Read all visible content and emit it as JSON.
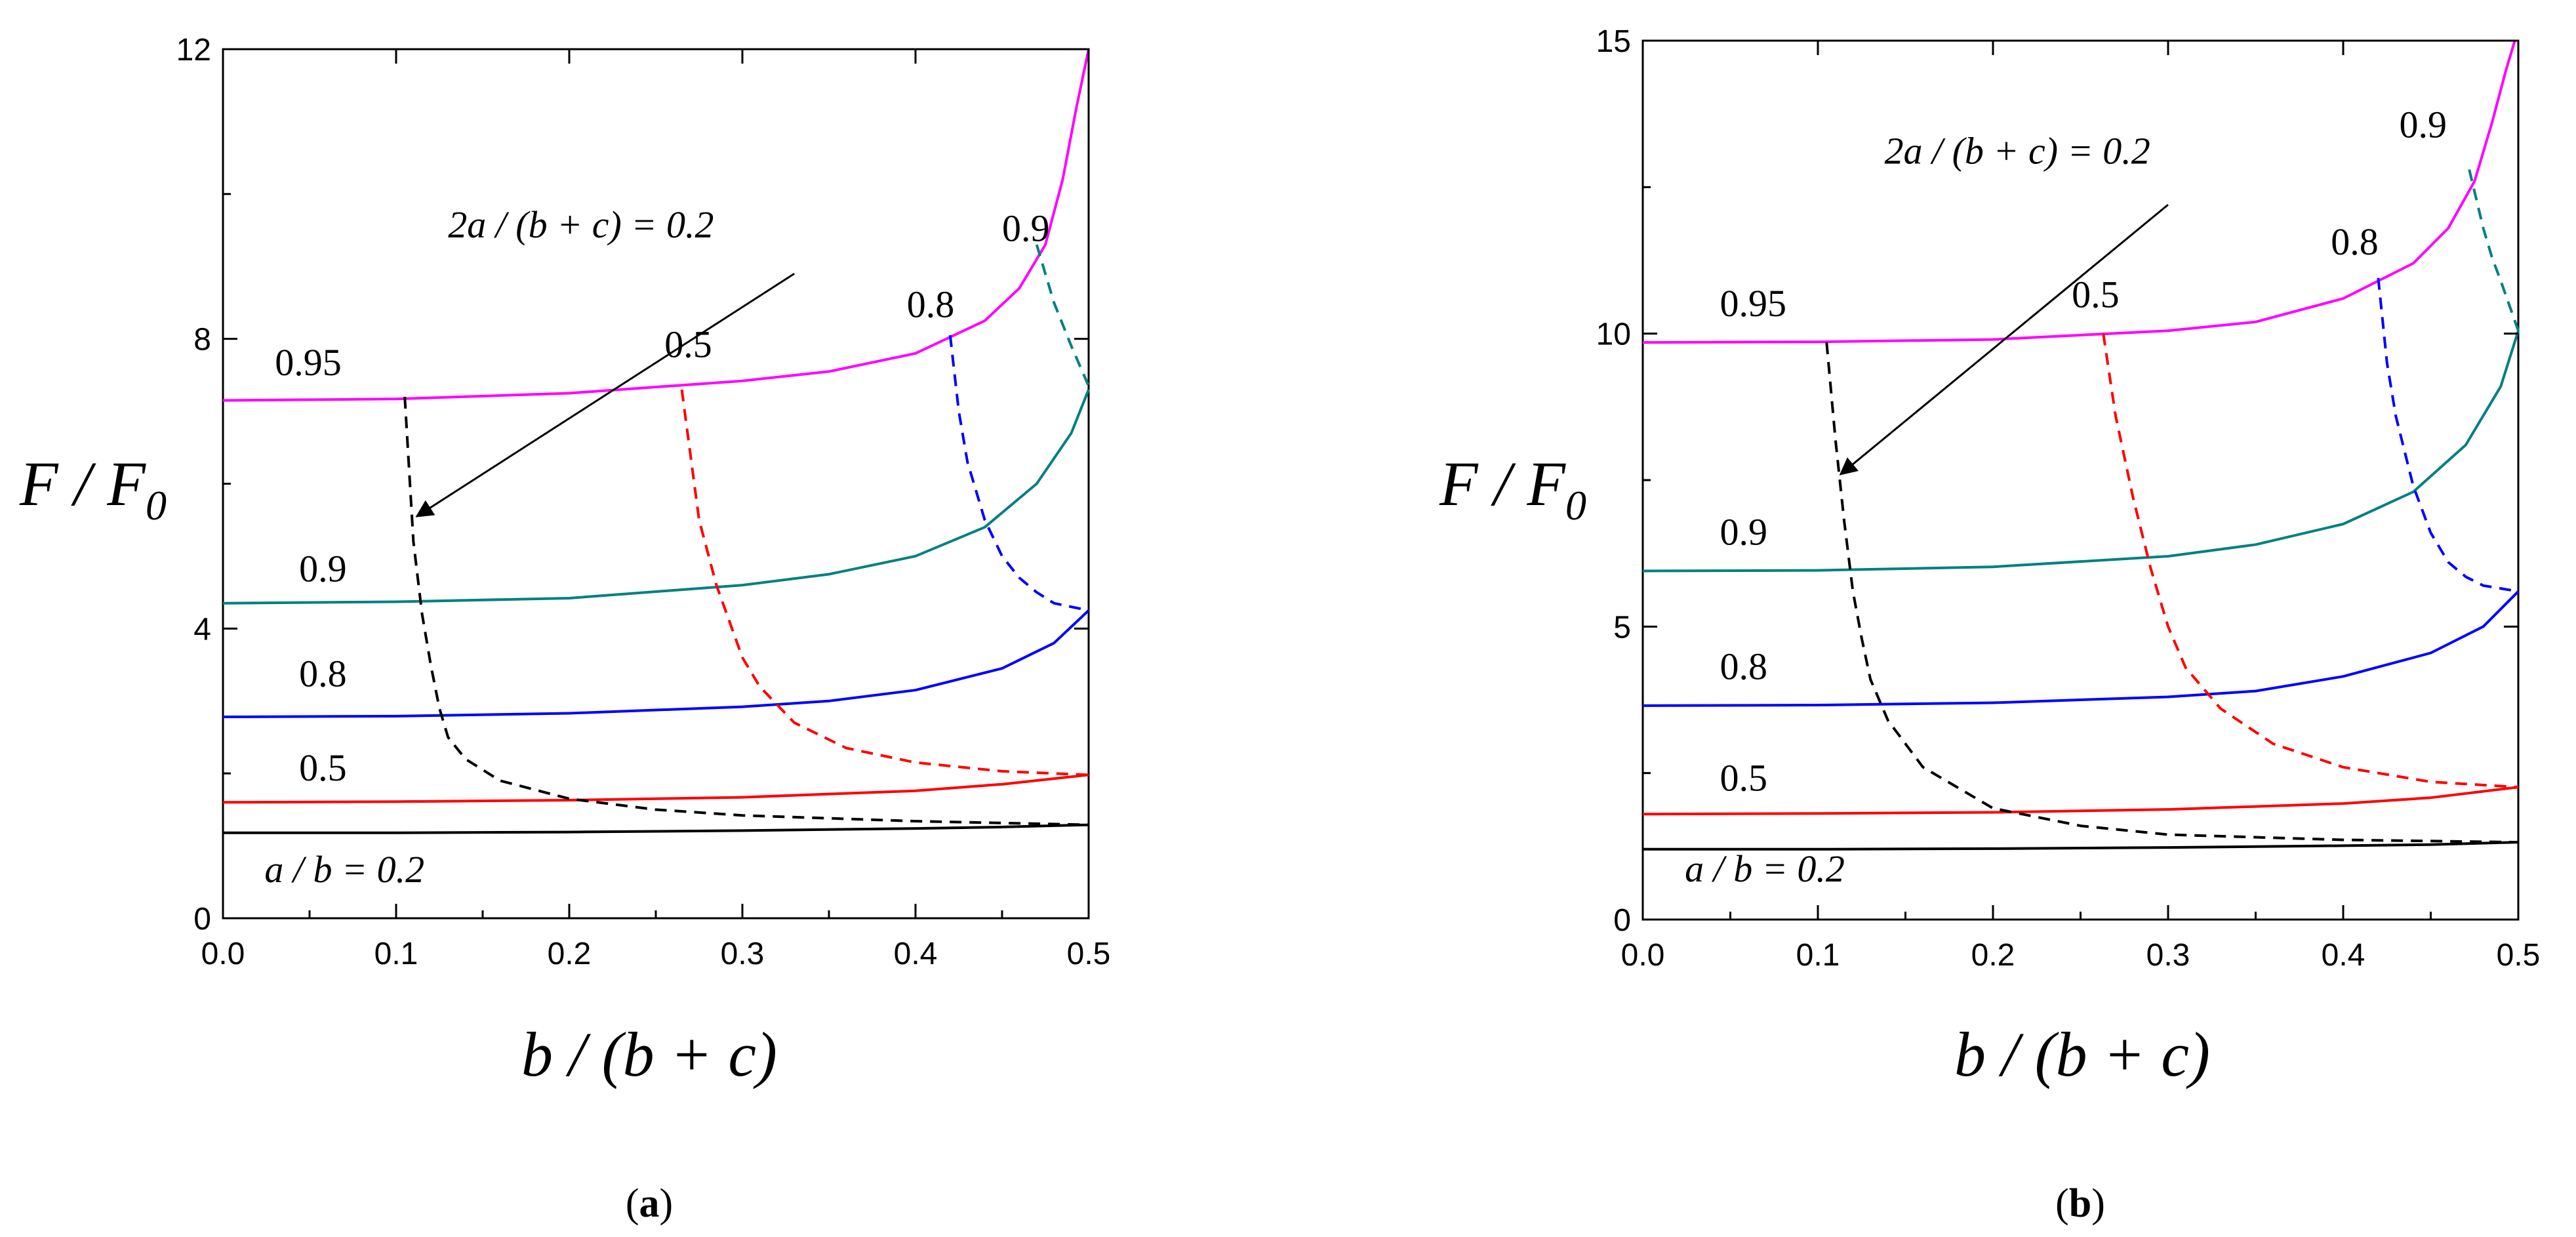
{
  "chart_data": [
    {
      "type": "line",
      "panel": "(a)",
      "panel_letter": "a",
      "xlabel": "b / (b + c)",
      "ylabel": "F / F0",
      "ylabel_main": "F / F",
      "ylabel_sub": "0",
      "xlim": [
        0,
        0.5
      ],
      "ylim": [
        0,
        12
      ],
      "xticks": [
        0.0,
        0.1,
        0.2,
        0.3,
        0.4,
        0.5
      ],
      "xtick_labels": [
        "0.0",
        "0.1",
        "0.2",
        "0.3",
        "0.4",
        "0.5"
      ],
      "yticks": [
        0,
        4,
        8,
        12
      ],
      "ytick_labels": [
        "0",
        "4",
        "8",
        "12"
      ],
      "solid_series": [
        {
          "name": "a/b = 0.2",
          "label": "a / b = 0.2",
          "color": "#000000",
          "label_pos": [
            0.024,
            0.5
          ],
          "points": [
            [
              0,
              1.18
            ],
            [
              0.1,
              1.18
            ],
            [
              0.2,
              1.19
            ],
            [
              0.3,
              1.21
            ],
            [
              0.4,
              1.24
            ],
            [
              0.45,
              1.26
            ],
            [
              0.5,
              1.29
            ]
          ]
        },
        {
          "name": "a/b = 0.5",
          "label": "0.5",
          "color": "#ff0000",
          "label_pos": [
            0.044,
            1.9
          ],
          "points": [
            [
              0,
              1.6
            ],
            [
              0.1,
              1.61
            ],
            [
              0.2,
              1.63
            ],
            [
              0.3,
              1.67
            ],
            [
              0.4,
              1.76
            ],
            [
              0.45,
              1.85
            ],
            [
              0.5,
              1.98
            ]
          ]
        },
        {
          "name": "a/b = 0.8",
          "label": "0.8",
          "color": "#0000ff",
          "label_pos": [
            0.044,
            3.2
          ],
          "points": [
            [
              0,
              2.78
            ],
            [
              0.1,
              2.79
            ],
            [
              0.2,
              2.83
            ],
            [
              0.3,
              2.92
            ],
            [
              0.35,
              3.0
            ],
            [
              0.4,
              3.15
            ],
            [
              0.45,
              3.45
            ],
            [
              0.48,
              3.8
            ],
            [
              0.5,
              4.25
            ]
          ]
        },
        {
          "name": "a/b = 0.9",
          "label": "0.9",
          "color": "#008080",
          "label_pos": [
            0.044,
            4.65
          ],
          "points": [
            [
              0,
              4.35
            ],
            [
              0.1,
              4.37
            ],
            [
              0.2,
              4.42
            ],
            [
              0.3,
              4.6
            ],
            [
              0.35,
              4.75
            ],
            [
              0.4,
              5.0
            ],
            [
              0.44,
              5.4
            ],
            [
              0.47,
              6.0
            ],
            [
              0.49,
              6.7
            ],
            [
              0.5,
              7.3
            ]
          ]
        },
        {
          "name": "a/b = 0.95",
          "label": "0.95",
          "color": "#ff00ff",
          "label_pos": [
            0.03,
            7.5
          ],
          "points": [
            [
              0,
              7.15
            ],
            [
              0.1,
              7.17
            ],
            [
              0.2,
              7.25
            ],
            [
              0.3,
              7.42
            ],
            [
              0.35,
              7.55
            ],
            [
              0.4,
              7.8
            ],
            [
              0.44,
              8.25
            ],
            [
              0.46,
              8.7
            ],
            [
              0.475,
              9.3
            ],
            [
              0.485,
              10.2
            ],
            [
              0.493,
              11.2
            ],
            [
              0.5,
              12.0
            ]
          ]
        }
      ],
      "dashed_series": [
        {
          "name": "2a/(b+c) = 0.2",
          "color": "#000000",
          "points": [
            [
              0.105,
              7.2
            ],
            [
              0.11,
              5.2
            ],
            [
              0.115,
              4.2
            ],
            [
              0.12,
              3.5
            ],
            [
              0.125,
              2.9
            ],
            [
              0.13,
              2.5
            ],
            [
              0.14,
              2.2
            ],
            [
              0.16,
              1.9
            ],
            [
              0.2,
              1.65
            ],
            [
              0.25,
              1.5
            ],
            [
              0.3,
              1.42
            ],
            [
              0.4,
              1.34
            ],
            [
              0.5,
              1.29
            ]
          ]
        },
        {
          "name": "2a/(b+c) = 0.5",
          "label": "0.5",
          "color": "#ff0000",
          "label_pos": [
            0.255,
            7.75
          ],
          "points": [
            [
              0.265,
              7.3
            ],
            [
              0.275,
              5.5
            ],
            [
              0.285,
              4.6
            ],
            [
              0.3,
              3.6
            ],
            [
              0.31,
              3.2
            ],
            [
              0.33,
              2.7
            ],
            [
              0.36,
              2.35
            ],
            [
              0.4,
              2.15
            ],
            [
              0.45,
              2.03
            ],
            [
              0.5,
              1.98
            ]
          ]
        },
        {
          "name": "2a/(b+c) = 0.8",
          "label": "0.8",
          "color": "#0000ff",
          "label_pos": [
            0.395,
            8.3
          ],
          "points": [
            [
              0.42,
              8.05
            ],
            [
              0.425,
              7.0
            ],
            [
              0.43,
              6.3
            ],
            [
              0.44,
              5.5
            ],
            [
              0.45,
              5.0
            ],
            [
              0.46,
              4.7
            ],
            [
              0.47,
              4.5
            ],
            [
              0.48,
              4.35
            ],
            [
              0.5,
              4.25
            ]
          ]
        },
        {
          "name": "2a/(b+c) = 0.9",
          "label": "0.9",
          "color": "#008080",
          "label_pos": [
            0.45,
            9.35
          ],
          "points": [
            [
              0.47,
              9.3
            ],
            [
              0.475,
              8.9
            ],
            [
              0.48,
              8.5
            ],
            [
              0.485,
              8.2
            ],
            [
              0.49,
              7.9
            ],
            [
              0.5,
              7.35
            ]
          ]
        }
      ],
      "annotation": {
        "text": "2a / (b + c) = 0.2",
        "text_pos": [
          0.13,
          9.4
        ],
        "arrow_from": [
          0.33,
          8.9
        ],
        "arrow_to": [
          0.112,
          5.55
        ]
      }
    },
    {
      "type": "line",
      "panel": "(b)",
      "panel_letter": "b",
      "xlabel": "b / (b + c)",
      "ylabel": "F / F0",
      "ylabel_main": "F / F",
      "ylabel_sub": "0",
      "xlim": [
        0,
        0.5
      ],
      "ylim": [
        0,
        15
      ],
      "xticks": [
        0.0,
        0.1,
        0.2,
        0.3,
        0.4,
        0.5
      ],
      "xtick_labels": [
        "0.0",
        "0.1",
        "0.2",
        "0.3",
        "0.4",
        "0.5"
      ],
      "yticks": [
        0,
        5,
        10,
        15
      ],
      "ytick_labels": [
        "0",
        "5",
        "10",
        "15"
      ],
      "solid_series": [
        {
          "name": "a/b = 0.2",
          "label": "a / b = 0.2",
          "color": "#000000",
          "label_pos": [
            0.024,
            0.65
          ],
          "points": [
            [
              0,
              1.2
            ],
            [
              0.1,
              1.2
            ],
            [
              0.2,
              1.21
            ],
            [
              0.3,
              1.23
            ],
            [
              0.4,
              1.26
            ],
            [
              0.45,
              1.28
            ],
            [
              0.5,
              1.32
            ]
          ]
        },
        {
          "name": "a/b = 0.5",
          "label": "0.5",
          "color": "#ff0000",
          "label_pos": [
            0.044,
            2.2
          ],
          "points": [
            [
              0,
              1.8
            ],
            [
              0.1,
              1.81
            ],
            [
              0.2,
              1.83
            ],
            [
              0.3,
              1.88
            ],
            [
              0.4,
              1.98
            ],
            [
              0.45,
              2.08
            ],
            [
              0.5,
              2.26
            ]
          ]
        },
        {
          "name": "a/b = 0.8",
          "label": "0.8",
          "color": "#0000ff",
          "label_pos": [
            0.044,
            4.1
          ],
          "points": [
            [
              0,
              3.65
            ],
            [
              0.1,
              3.66
            ],
            [
              0.2,
              3.7
            ],
            [
              0.3,
              3.8
            ],
            [
              0.35,
              3.9
            ],
            [
              0.4,
              4.15
            ],
            [
              0.45,
              4.55
            ],
            [
              0.48,
              5.0
            ],
            [
              0.5,
              5.6
            ]
          ]
        },
        {
          "name": "a/b = 0.9",
          "label": "0.9",
          "color": "#008080",
          "label_pos": [
            0.044,
            6.4
          ],
          "points": [
            [
              0,
              5.95
            ],
            [
              0.1,
              5.96
            ],
            [
              0.2,
              6.02
            ],
            [
              0.3,
              6.2
            ],
            [
              0.35,
              6.4
            ],
            [
              0.4,
              6.75
            ],
            [
              0.44,
              7.3
            ],
            [
              0.47,
              8.1
            ],
            [
              0.49,
              9.1
            ],
            [
              0.5,
              10.05
            ]
          ]
        },
        {
          "name": "a/b = 0.95",
          "label": "0.95",
          "color": "#ff00ff",
          "label_pos": [
            0.044,
            10.3
          ],
          "points": [
            [
              0,
              9.85
            ],
            [
              0.1,
              9.86
            ],
            [
              0.2,
              9.9
            ],
            [
              0.3,
              10.05
            ],
            [
              0.35,
              10.2
            ],
            [
              0.4,
              10.6
            ],
            [
              0.44,
              11.2
            ],
            [
              0.46,
              11.8
            ],
            [
              0.475,
              12.6
            ],
            [
              0.485,
              13.6
            ],
            [
              0.493,
              14.5
            ],
            [
              0.498,
              15.0
            ]
          ]
        }
      ],
      "dashed_series": [
        {
          "name": "2a/(b+c) = 0.2",
          "color": "#000000",
          "points": [
            [
              0.105,
              9.85
            ],
            [
              0.11,
              8.2
            ],
            [
              0.115,
              6.8
            ],
            [
              0.12,
              5.6
            ],
            [
              0.125,
              4.8
            ],
            [
              0.13,
              4.1
            ],
            [
              0.14,
              3.4
            ],
            [
              0.16,
              2.6
            ],
            [
              0.2,
              1.9
            ],
            [
              0.25,
              1.6
            ],
            [
              0.3,
              1.45
            ],
            [
              0.4,
              1.36
            ],
            [
              0.5,
              1.32
            ]
          ]
        },
        {
          "name": "2a/(b+c) = 0.5",
          "label": "0.5",
          "color": "#ff0000",
          "label_pos": [
            0.245,
            10.45
          ],
          "points": [
            [
              0.263,
              10.0
            ],
            [
              0.27,
              8.6
            ],
            [
              0.28,
              7.2
            ],
            [
              0.29,
              6.0
            ],
            [
              0.3,
              5.0
            ],
            [
              0.31,
              4.3
            ],
            [
              0.33,
              3.6
            ],
            [
              0.36,
              3.0
            ],
            [
              0.4,
              2.6
            ],
            [
              0.45,
              2.35
            ],
            [
              0.5,
              2.26
            ]
          ]
        },
        {
          "name": "2a/(b+c) = 0.8",
          "label": "0.8",
          "color": "#0000ff",
          "label_pos": [
            0.393,
            11.35
          ],
          "points": [
            [
              0.42,
              10.95
            ],
            [
              0.425,
              9.5
            ],
            [
              0.43,
              8.6
            ],
            [
              0.44,
              7.4
            ],
            [
              0.45,
              6.6
            ],
            [
              0.46,
              6.1
            ],
            [
              0.47,
              5.85
            ],
            [
              0.48,
              5.7
            ],
            [
              0.5,
              5.6
            ]
          ]
        },
        {
          "name": "2a/(b+c) = 0.9",
          "label": "0.9",
          "color": "#008080",
          "label_pos": [
            0.432,
            13.35
          ],
          "points": [
            [
              0.472,
              12.8
            ],
            [
              0.476,
              12.3
            ],
            [
              0.48,
              11.8
            ],
            [
              0.485,
              11.3
            ],
            [
              0.49,
              10.9
            ],
            [
              0.5,
              10.05
            ]
          ]
        }
      ],
      "annotation": {
        "text": "2a / (b + c) = 0.2",
        "text_pos": [
          0.138,
          12.9
        ],
        "arrow_from": [
          0.3,
          12.2
        ],
        "arrow_to": [
          0.113,
          7.6
        ]
      }
    }
  ]
}
